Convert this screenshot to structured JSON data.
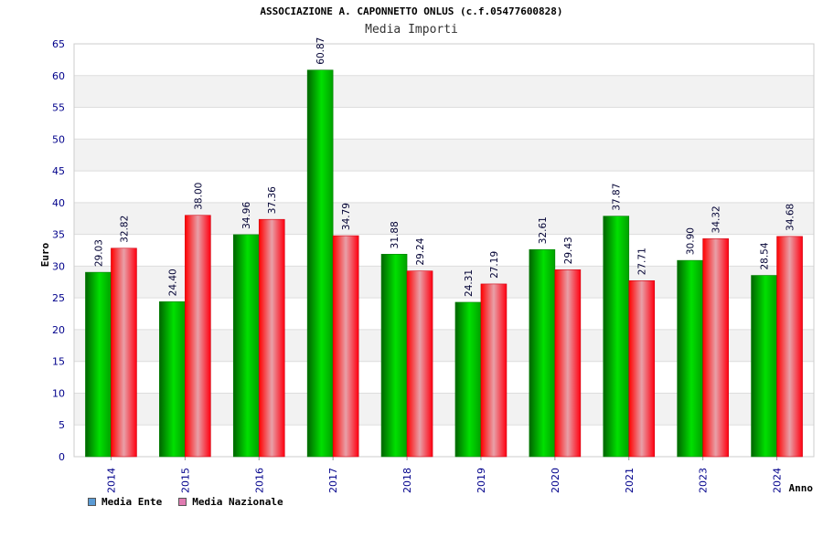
{
  "header": {
    "title": "ASSOCIAZIONE A. CAPONNETTO ONLUS (c.f.05477600828)",
    "subtitle": "Media Importi"
  },
  "legend": {
    "items": [
      {
        "label": "Media Ente",
        "color": "#5b9bd5"
      },
      {
        "label": "Media Nazionale",
        "color": "#e07bb1"
      }
    ]
  },
  "colors": {
    "series1": "#00b000",
    "series2": "#ff1a2a",
    "grid_band": "#f2f2f2",
    "axis_text": "#00008b"
  },
  "chart_data": {
    "type": "bar",
    "title": "ASSOCIAZIONE A. CAPONNETTO ONLUS (c.f.05477600828)",
    "subtitle": "Media Importi",
    "xlabel": "Anno",
    "ylabel": "Euro",
    "ylim": [
      0,
      65
    ],
    "yticks": [
      0,
      5,
      10,
      15,
      20,
      25,
      30,
      35,
      40,
      45,
      50,
      55,
      60,
      65
    ],
    "grid": true,
    "legend_position": "bottom-left",
    "categories": [
      "2014",
      "2015",
      "2016",
      "2017",
      "2018",
      "2019",
      "2020",
      "2021",
      "2023",
      "2024"
    ],
    "series": [
      {
        "name": "Media Ente",
        "values": [
          29.03,
          24.4,
          34.96,
          60.87,
          31.88,
          24.31,
          32.61,
          37.87,
          30.9,
          28.54
        ]
      },
      {
        "name": "Media Nazionale",
        "values": [
          32.82,
          38.0,
          37.36,
          34.79,
          29.24,
          27.19,
          29.43,
          27.71,
          34.32,
          34.68
        ]
      }
    ]
  }
}
